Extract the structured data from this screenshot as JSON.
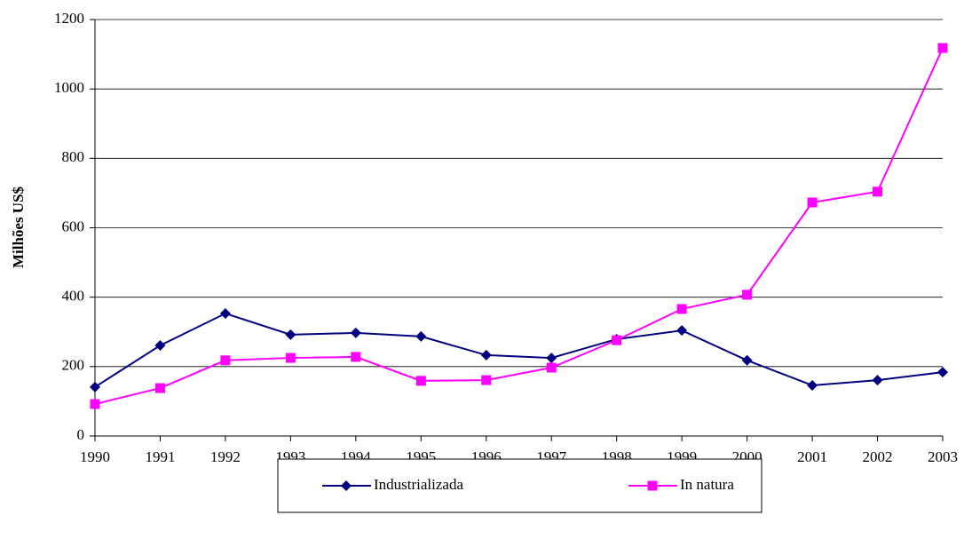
{
  "chart_data": {
    "type": "line",
    "y_label": "Milhões US$",
    "categories": [
      "1990",
      "1991",
      "1992",
      "1993",
      "1994",
      "1995",
      "1996",
      "1997",
      "1998",
      "1999",
      "2000",
      "2001",
      "2002",
      "2003"
    ],
    "series": [
      {
        "name": "Industrializada",
        "color": "#000080",
        "marker": "diamond",
        "values": [
          141,
          261,
          353,
          292,
          297,
          287,
          233,
          225,
          279,
          304,
          218,
          146,
          161,
          184
        ]
      },
      {
        "name": "In natura",
        "color": "#ff00ff",
        "marker": "square",
        "values": [
          92,
          138,
          218,
          225,
          228,
          159,
          161,
          197,
          276,
          366,
          407,
          673,
          704,
          1118
        ]
      }
    ],
    "ylim": [
      0,
      1200
    ],
    "yticks": [
      0,
      200,
      400,
      600,
      800,
      1000,
      1200
    ],
    "grid": true,
    "legend": "bottom"
  }
}
